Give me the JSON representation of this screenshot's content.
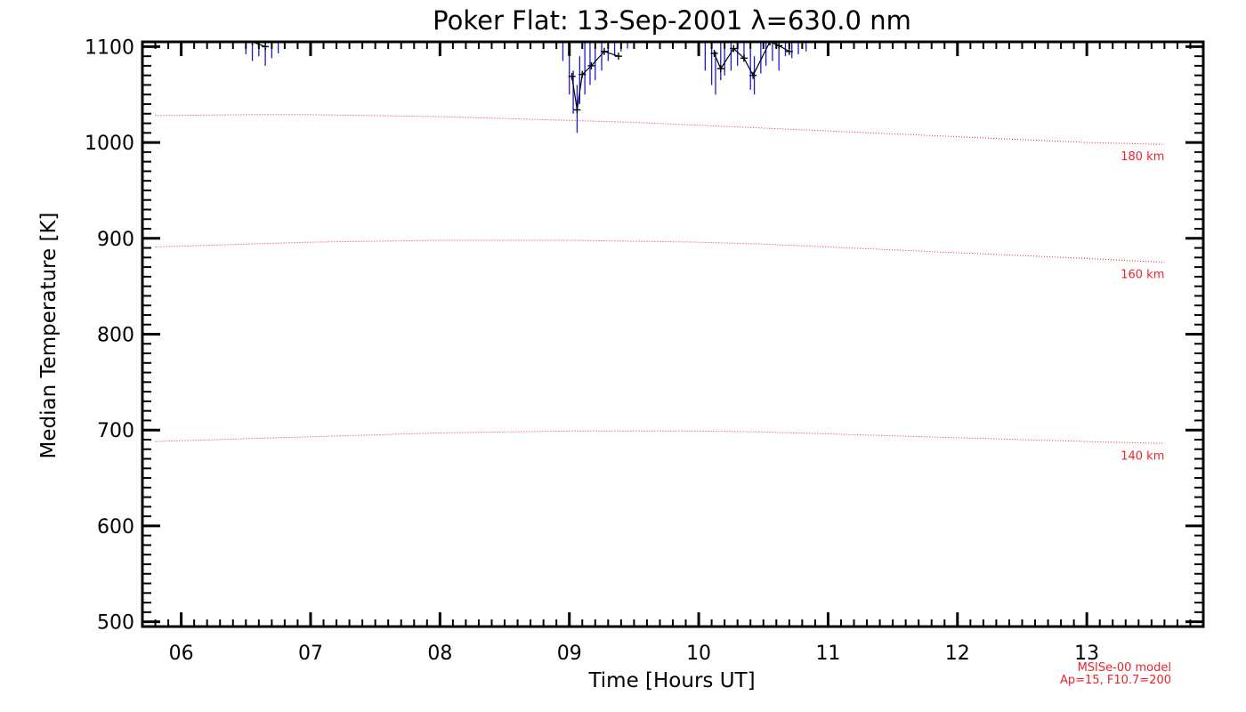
{
  "chart_data": {
    "type": "line",
    "title": "Poker Flat: 13-Sep-2001 λ=630.0 nm",
    "xlabel": "Time [Hours UT]",
    "ylabel": "Median Temperature [K]",
    "xlim": [
      5.7,
      13.9
    ],
    "ylim": [
      495,
      1105
    ],
    "x_ticks": [
      6,
      7,
      8,
      9,
      10,
      11,
      12,
      13
    ],
    "x_tick_labels": [
      "06",
      "07",
      "08",
      "09",
      "10",
      "11",
      "12",
      "13"
    ],
    "y_ticks": [
      500,
      600,
      700,
      800,
      900,
      1000,
      1100
    ],
    "y_tick_labels": [
      "500",
      "600",
      "700",
      "800",
      "900",
      "1000",
      "1100"
    ],
    "model_curves": [
      {
        "name": "180 km",
        "x": [
          5.8,
          6.5,
          7.0,
          7.5,
          8.0,
          8.5,
          9.0,
          9.5,
          10.0,
          10.5,
          11.0,
          11.5,
          12.0,
          12.5,
          13.0,
          13.6
        ],
        "y": [
          1028,
          1029,
          1029,
          1028,
          1027,
          1025,
          1023,
          1021,
          1018,
          1015,
          1012,
          1009,
          1006,
          1003,
          1000,
          998
        ]
      },
      {
        "name": "160 km",
        "x": [
          5.8,
          6.5,
          7.0,
          7.5,
          8.0,
          8.5,
          9.0,
          9.5,
          10.0,
          10.5,
          11.0,
          11.5,
          12.0,
          12.5,
          13.0,
          13.6
        ],
        "y": [
          891,
          894,
          896,
          897,
          898,
          898,
          898,
          897,
          896,
          894,
          891,
          888,
          885,
          882,
          879,
          875
        ]
      },
      {
        "name": "140 km",
        "x": [
          5.8,
          6.5,
          7.0,
          7.5,
          8.0,
          8.5,
          9.0,
          9.5,
          10.0,
          10.5,
          11.0,
          11.5,
          12.0,
          12.5,
          13.0,
          13.6
        ],
        "y": [
          688,
          691,
          693,
          695,
          697,
          698,
          699,
          699,
          699,
          698,
          696,
          694,
          692,
          690,
          688,
          686
        ]
      }
    ],
    "median_series": {
      "name": "median temperature",
      "x": [
        6.55,
        6.65,
        9.02,
        9.06,
        9.1,
        9.17,
        9.27,
        9.38,
        10.12,
        10.17,
        10.27,
        10.35,
        10.42,
        10.55,
        10.62,
        10.7
      ],
      "y": [
        1108,
        1100,
        1069,
        1034,
        1071,
        1080,
        1095,
        1090,
        1093,
        1077,
        1098,
        1088,
        1070,
        1107,
        1101,
        1095
      ]
    },
    "scatter_samples": {
      "name": "individual samples",
      "x": [
        6.3,
        6.4,
        6.5,
        6.55,
        6.6,
        6.65,
        6.7,
        6.75,
        8.95,
        9.0,
        9.03,
        9.06,
        9.08,
        9.12,
        9.16,
        9.2,
        9.25,
        9.3,
        9.35,
        9.4,
        9.45,
        10.05,
        10.1,
        10.13,
        10.17,
        10.2,
        10.25,
        10.3,
        10.35,
        10.4,
        10.43,
        10.48,
        10.52,
        10.57,
        10.62,
        10.67,
        10.72,
        10.77,
        10.83
      ],
      "y_low": [
        1100,
        1098,
        1092,
        1085,
        1090,
        1080,
        1088,
        1093,
        1085,
        1050,
        1030,
        1010,
        1040,
        1050,
        1060,
        1065,
        1075,
        1085,
        1090,
        1095,
        1098,
        1075,
        1060,
        1050,
        1065,
        1070,
        1075,
        1080,
        1085,
        1055,
        1050,
        1072,
        1080,
        1085,
        1075,
        1090,
        1088,
        1092,
        1095
      ],
      "y_high": [
        1110,
        1110,
        1110,
        1110,
        1110,
        1108,
        1110,
        1110,
        1110,
        1095,
        1075,
        1060,
        1090,
        1105,
        1110,
        1110,
        1110,
        1110,
        1110,
        1110,
        1110,
        1110,
        1105,
        1095,
        1110,
        1108,
        1110,
        1110,
        1110,
        1100,
        1090,
        1110,
        1110,
        1110,
        1110,
        1110,
        1110,
        1110,
        1110
      ]
    },
    "annotations": {
      "model_line1": "MSISe-00 model",
      "model_line2": "Ap=15, F10.7=200"
    },
    "colors": {
      "axes": "#000000",
      "model": "#e8262b",
      "median": "#000000",
      "samples": "#1a1acc"
    },
    "grid": false,
    "legend": "none"
  }
}
